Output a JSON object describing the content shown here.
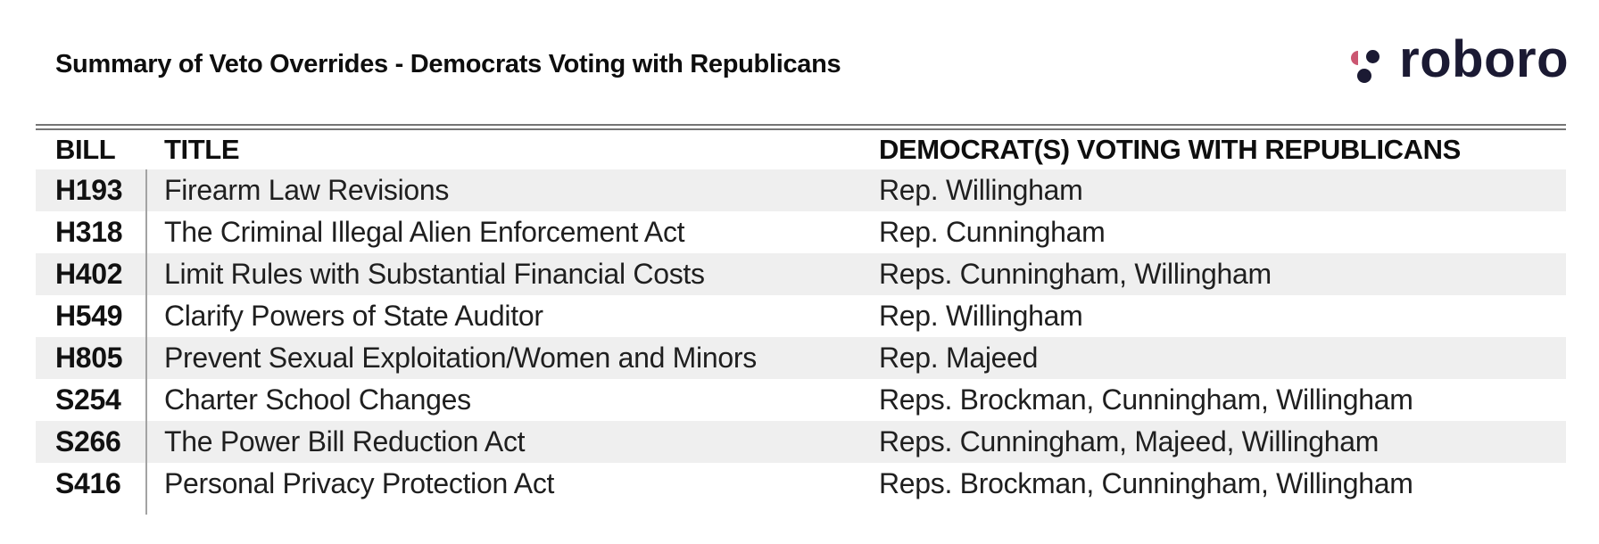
{
  "page": {
    "title": "Summary of Veto Overrides - Democrats Voting with Republicans"
  },
  "logo": {
    "text": "roboro",
    "navy": "#1b1a33",
    "pink": "#cb5671"
  },
  "table": {
    "columns": [
      "BILL",
      "TITLE",
      "DEMOCRAT(S) VOTING WITH REPUBLICANS"
    ],
    "rows": [
      {
        "bill": "H193",
        "title": "Firearm Law Revisions",
        "democrats": "Rep. Willingham"
      },
      {
        "bill": "H318",
        "title": "The Criminal Illegal Alien Enforcement Act",
        "democrats": "Rep. Cunningham"
      },
      {
        "bill": "H402",
        "title": "Limit Rules with Substantial Financial Costs",
        "democrats": "Reps. Cunningham, Willingham"
      },
      {
        "bill": "H549",
        "title": "Clarify Powers of State Auditor",
        "democrats": "Rep. Willingham"
      },
      {
        "bill": "H805",
        "title": "Prevent Sexual Exploitation/Women and Minors",
        "democrats": "Rep. Majeed"
      },
      {
        "bill": "S254",
        "title": "Charter School Changes",
        "democrats": "Reps. Brockman, Cunningham, Willingham"
      },
      {
        "bill": "S266",
        "title": "The Power Bill Reduction Act",
        "democrats": "Reps. Cunningham, Majeed, Willingham"
      },
      {
        "bill": "S416",
        "title": "Personal Privacy Protection Act",
        "democrats": "Reps. Brockman, Cunningham, Willingham"
      }
    ],
    "colors": {
      "stripe": "#efefef",
      "rule": "#757575",
      "divider": "#a3a3a3"
    }
  }
}
